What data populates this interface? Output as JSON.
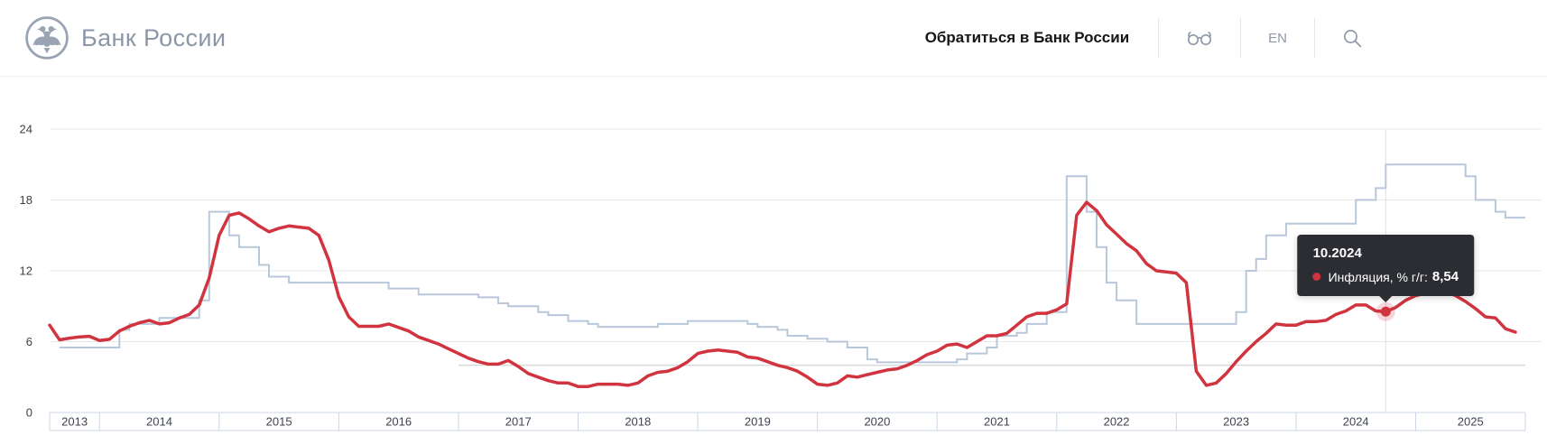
{
  "header": {
    "logo_text": "Банк России",
    "contact_link": "Обратиться в Банк России",
    "language_label": "EN"
  },
  "tooltip": {
    "date": "10.2024",
    "series_label": "Инфляция, % г/г:",
    "value": "8,54",
    "point": {
      "month": "2024-10",
      "value": 8.54
    }
  },
  "chart_data": {
    "type": "line",
    "x_range": [
      "2013-08",
      "2025-12"
    ],
    "years": [
      "2013",
      "2014",
      "2015",
      "2016",
      "2017",
      "2018",
      "2019",
      "2020",
      "2021",
      "2022",
      "2023",
      "2024",
      "2025"
    ],
    "y_axis": {
      "ticks": [
        0,
        6,
        12,
        18,
        24
      ],
      "max": 24
    },
    "grid": true,
    "legend": "none",
    "colors": {
      "inflation_red": "#d1333f",
      "key_rate_blue": "#b9c7da",
      "grid": "#e8e8e8",
      "target_line": "#d9d9d9",
      "axis_border": "#ccd6e3",
      "axis_text": "#3f434c",
      "crosshair": "#e2e2e2",
      "tooltip_bg": "#2b2d33",
      "marker_halo": "rgba(209,51,63,0.2)"
    },
    "reference_line": {
      "value": 4,
      "from": "2017-01"
    },
    "series": [
      {
        "id": "inflation",
        "label": "Инфляция, % г/г",
        "style": "line",
        "color": "#d1333f",
        "start_month": "2013-08",
        "monthly_values": [
          7.4,
          6.15,
          6.3,
          6.4,
          6.45,
          6.1,
          6.2,
          6.9,
          7.3,
          7.6,
          7.8,
          7.5,
          7.6,
          8.0,
          8.3,
          9.1,
          11.4,
          15.0,
          16.7,
          16.9,
          16.4,
          15.8,
          15.3,
          15.6,
          15.8,
          15.7,
          15.6,
          15.0,
          12.9,
          9.8,
          8.1,
          7.3,
          7.3,
          7.3,
          7.5,
          7.2,
          6.9,
          6.4,
          6.1,
          5.8,
          5.4,
          5.0,
          4.6,
          4.3,
          4.1,
          4.1,
          4.4,
          3.9,
          3.3,
          3.0,
          2.7,
          2.5,
          2.5,
          2.2,
          2.2,
          2.4,
          2.4,
          2.4,
          2.3,
          2.5,
          3.1,
          3.4,
          3.5,
          3.8,
          4.3,
          5.0,
          5.2,
          5.3,
          5.2,
          5.1,
          4.7,
          4.6,
          4.3,
          4.0,
          3.8,
          3.5,
          3.0,
          2.4,
          2.3,
          2.5,
          3.1,
          3.0,
          3.2,
          3.4,
          3.6,
          3.7,
          4.0,
          4.4,
          4.9,
          5.2,
          5.7,
          5.8,
          5.5,
          6.0,
          6.5,
          6.5,
          6.7,
          7.4,
          8.1,
          8.4,
          8.4,
          8.7,
          9.2,
          16.7,
          17.8,
          17.1,
          15.9,
          15.1,
          14.3,
          13.7,
          12.6,
          12.0,
          11.9,
          11.8,
          11.0,
          3.5,
          2.3,
          2.5,
          3.3,
          4.3,
          5.2,
          6.0,
          6.7,
          7.5,
          7.4,
          7.4,
          7.7,
          7.7,
          7.8,
          8.3,
          8.6,
          9.1,
          9.1,
          8.6,
          8.54,
          8.9,
          9.5,
          9.9,
          10.1,
          10.3,
          10.2,
          9.9,
          9.4,
          8.8,
          8.1,
          8.0,
          7.1,
          6.8
        ]
      },
      {
        "id": "key-rate",
        "label": "",
        "style": "step",
        "color": "#b9c7da",
        "steps": [
          [
            "2013-09",
            5.5
          ],
          [
            "2014-03",
            7.0
          ],
          [
            "2014-04",
            7.5
          ],
          [
            "2014-07",
            8.0
          ],
          [
            "2014-11",
            9.5
          ],
          [
            "2014-12",
            17.0
          ],
          [
            "2015-02",
            15.0
          ],
          [
            "2015-03",
            14.0
          ],
          [
            "2015-05",
            12.5
          ],
          [
            "2015-06",
            11.5
          ],
          [
            "2015-08",
            11.0
          ],
          [
            "2016-06",
            10.5
          ],
          [
            "2016-09",
            10.0
          ],
          [
            "2017-03",
            9.75
          ],
          [
            "2017-05",
            9.25
          ],
          [
            "2017-06",
            9.0
          ],
          [
            "2017-09",
            8.5
          ],
          [
            "2017-10",
            8.25
          ],
          [
            "2017-12",
            7.75
          ],
          [
            "2018-02",
            7.5
          ],
          [
            "2018-03",
            7.25
          ],
          [
            "2018-09",
            7.5
          ],
          [
            "2018-12",
            7.75
          ],
          [
            "2019-06",
            7.5
          ],
          [
            "2019-07",
            7.25
          ],
          [
            "2019-09",
            7.0
          ],
          [
            "2019-10",
            6.5
          ],
          [
            "2019-12",
            6.25
          ],
          [
            "2020-02",
            6.0
          ],
          [
            "2020-04",
            5.5
          ],
          [
            "2020-06",
            4.5
          ],
          [
            "2020-07",
            4.25
          ],
          [
            "2021-03",
            4.5
          ],
          [
            "2021-04",
            5.0
          ],
          [
            "2021-06",
            5.5
          ],
          [
            "2021-07",
            6.5
          ],
          [
            "2021-09",
            6.75
          ],
          [
            "2021-10",
            7.5
          ],
          [
            "2021-12",
            8.5
          ],
          [
            "2022-02",
            20.0
          ],
          [
            "2022-04",
            17.0
          ],
          [
            "2022-05",
            14.0
          ],
          [
            "2022-06",
            11.0
          ],
          [
            "2022-07",
            9.5
          ],
          [
            "2022-09",
            7.5
          ],
          [
            "2023-07",
            8.5
          ],
          [
            "2023-08",
            12.0
          ],
          [
            "2023-09",
            13.0
          ],
          [
            "2023-10",
            15.0
          ],
          [
            "2023-12",
            16.0
          ],
          [
            "2024-07",
            18.0
          ],
          [
            "2024-09",
            19.0
          ],
          [
            "2024-10",
            21.0
          ],
          [
            "2025-06",
            20.0
          ],
          [
            "2025-07",
            18.0
          ],
          [
            "2025-09",
            17.0
          ],
          [
            "2025-10",
            16.5
          ]
        ]
      }
    ]
  }
}
